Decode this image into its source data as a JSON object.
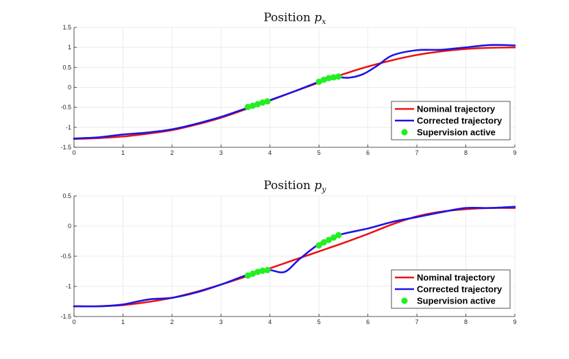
{
  "chart_data": [
    {
      "type": "line",
      "title": "Position ",
      "title_subscript": "x",
      "xlabel": "",
      "ylabel": "",
      "xlim": [
        0,
        9
      ],
      "ylim": [
        -1.5,
        1.5
      ],
      "xticks": [
        "0",
        "1",
        "2",
        "3",
        "4",
        "5",
        "6",
        "7",
        "8",
        "9"
      ],
      "yticks": [
        "-1.5",
        "-1",
        "-0.5",
        "0",
        "0.5",
        "1",
        "1.5"
      ],
      "grid": true,
      "legend_position": "bottom-right",
      "series": [
        {
          "name": "Nominal trajectory",
          "color": "#ee1111",
          "x": [
            0,
            0.5,
            1,
            1.5,
            2,
            2.5,
            3,
            3.5,
            4,
            4.5,
            5,
            5.5,
            6,
            6.5,
            7,
            7.5,
            8,
            8.5,
            9
          ],
          "y": [
            -1.29,
            -1.27,
            -1.23,
            -1.16,
            -1.07,
            -0.93,
            -0.76,
            -0.55,
            -0.33,
            -0.1,
            0.12,
            0.33,
            0.52,
            0.68,
            0.81,
            0.9,
            0.96,
            0.99,
            1.0
          ]
        },
        {
          "name": "Corrected trajectory",
          "color": "#1a14e6",
          "x": [
            0,
            0.5,
            1,
            1.5,
            2,
            2.5,
            3,
            3.5,
            4,
            4.5,
            5,
            5.3,
            5.6,
            5.9,
            6.2,
            6.5,
            7,
            7.5,
            8,
            8.5,
            9
          ],
          "y": [
            -1.28,
            -1.25,
            -1.18,
            -1.13,
            -1.05,
            -0.91,
            -0.74,
            -0.53,
            -0.32,
            -0.1,
            0.14,
            0.26,
            0.24,
            0.33,
            0.55,
            0.8,
            0.93,
            0.94,
            1.0,
            1.06,
            1.05
          ]
        }
      ],
      "supervision": {
        "name": "Supervision active",
        "color": "#22ee22",
        "segments": [
          {
            "x": [
              3.55,
              3.65,
              3.75,
              3.85,
              3.95
            ],
            "y": [
              -0.49,
              -0.46,
              -0.42,
              -0.38,
              -0.35
            ]
          },
          {
            "x": [
              5.0,
              5.1,
              5.2,
              5.3,
              5.4
            ],
            "y": [
              0.14,
              0.19,
              0.23,
              0.25,
              0.27
            ]
          }
        ]
      }
    },
    {
      "type": "line",
      "title": "Position ",
      "title_subscript": "y",
      "xlabel": "",
      "ylabel": "",
      "xlim": [
        0,
        9
      ],
      "ylim": [
        -1.5,
        0.5
      ],
      "xticks": [
        "0",
        "1",
        "2",
        "3",
        "4",
        "5",
        "6",
        "7",
        "8",
        "9"
      ],
      "yticks": [
        "-1.5",
        "-1",
        "-0.5",
        "0",
        "0.5"
      ],
      "grid": true,
      "legend_position": "bottom-right",
      "series": [
        {
          "name": "Nominal trajectory",
          "color": "#ee1111",
          "x": [
            0,
            0.5,
            1,
            1.5,
            2,
            2.5,
            3,
            3.5,
            4,
            4.5,
            5,
            5.5,
            6,
            6.5,
            7,
            7.5,
            8,
            8.5,
            9
          ],
          "y": [
            -1.33,
            -1.33,
            -1.31,
            -1.26,
            -1.19,
            -1.09,
            -0.97,
            -0.84,
            -0.7,
            -0.56,
            -0.42,
            -0.28,
            -0.13,
            0.03,
            0.16,
            0.24,
            0.28,
            0.3,
            0.3
          ]
        },
        {
          "name": "Corrected trajectory",
          "color": "#1a14e6",
          "x": [
            0,
            0.5,
            1,
            1.3,
            1.6,
            2,
            2.5,
            3,
            3.5,
            3.8,
            4.0,
            4.3,
            4.6,
            5,
            5.4,
            6,
            6.5,
            7,
            7.5,
            8,
            8.5,
            9
          ],
          "y": [
            -1.33,
            -1.33,
            -1.3,
            -1.25,
            -1.21,
            -1.19,
            -1.1,
            -0.97,
            -0.82,
            -0.75,
            -0.73,
            -0.76,
            -0.55,
            -0.3,
            -0.15,
            -0.04,
            0.07,
            0.15,
            0.23,
            0.3,
            0.3,
            0.32
          ]
        }
      ],
      "supervision": {
        "name": "Supervision active",
        "color": "#22ee22",
        "segments": [
          {
            "x": [
              3.55,
              3.65,
              3.75,
              3.85,
              3.95
            ],
            "y": [
              -0.82,
              -0.79,
              -0.76,
              -0.74,
              -0.73
            ]
          },
          {
            "x": [
              5.0,
              5.1,
              5.2,
              5.3,
              5.4
            ],
            "y": [
              -0.32,
              -0.27,
              -0.23,
              -0.19,
              -0.15
            ]
          }
        ]
      }
    }
  ]
}
